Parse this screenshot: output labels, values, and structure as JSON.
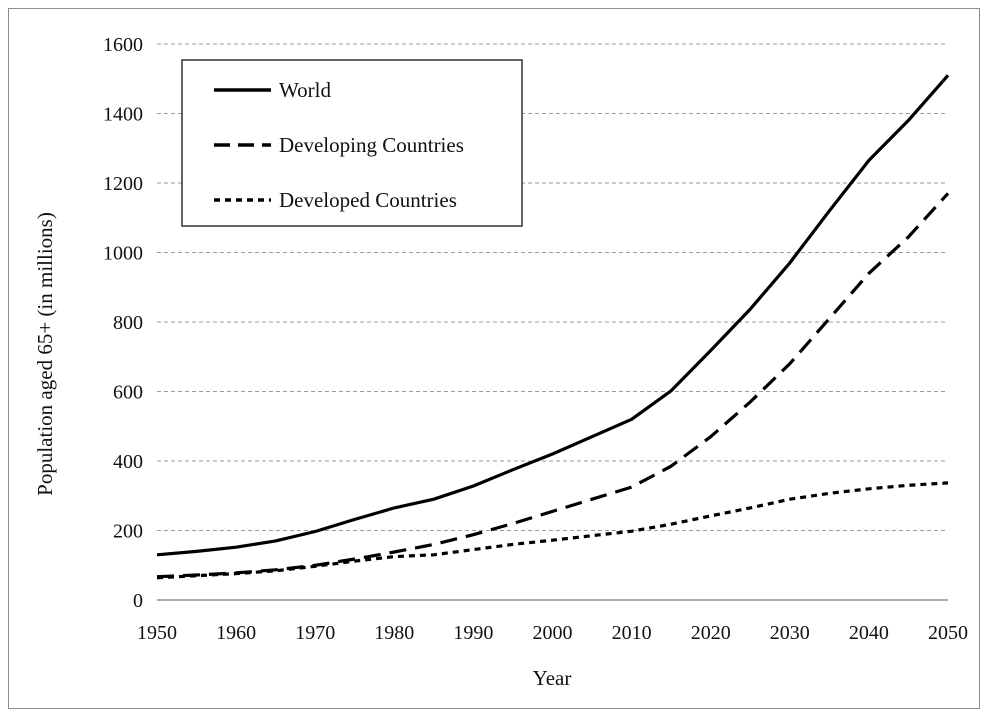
{
  "chart_data": {
    "type": "line",
    "title": "",
    "xlabel": "Year",
    "ylabel": "Population aged 65+ (in millions)",
    "xlim": [
      1950,
      2050
    ],
    "ylim": [
      0,
      1600
    ],
    "x_ticks": [
      1950,
      1960,
      1970,
      1980,
      1990,
      2000,
      2010,
      2020,
      2030,
      2040,
      2050
    ],
    "y_ticks": [
      0,
      200,
      400,
      600,
      800,
      1000,
      1200,
      1400,
      1600
    ],
    "grid": "horizontal dashed",
    "legend_position": "top-left",
    "x": [
      1950,
      1955,
      1960,
      1965,
      1970,
      1975,
      1980,
      1985,
      1990,
      1995,
      2000,
      2005,
      2010,
      2015,
      2020,
      2025,
      2030,
      2035,
      2040,
      2045,
      2050
    ],
    "series": [
      {
        "name": "World",
        "line_style": "solid",
        "values": [
          130,
          140,
          152,
          170,
          197,
          232,
          265,
          290,
          328,
          375,
          420,
          470,
          520,
          602,
          718,
          837,
          970,
          1120,
          1265,
          1380,
          1510
        ]
      },
      {
        "name": "Developing Countries",
        "line_style": "long-dash",
        "values": [
          67,
          72,
          78,
          87,
          100,
          118,
          138,
          160,
          188,
          220,
          255,
          290,
          325,
          385,
          470,
          570,
          680,
          810,
          940,
          1045,
          1170
        ]
      },
      {
        "name": "Developed Countries",
        "line_style": "short-dash",
        "values": [
          64,
          70,
          76,
          84,
          97,
          112,
          125,
          130,
          145,
          160,
          172,
          185,
          198,
          218,
          242,
          265,
          290,
          307,
          320,
          330,
          337
        ]
      }
    ]
  }
}
